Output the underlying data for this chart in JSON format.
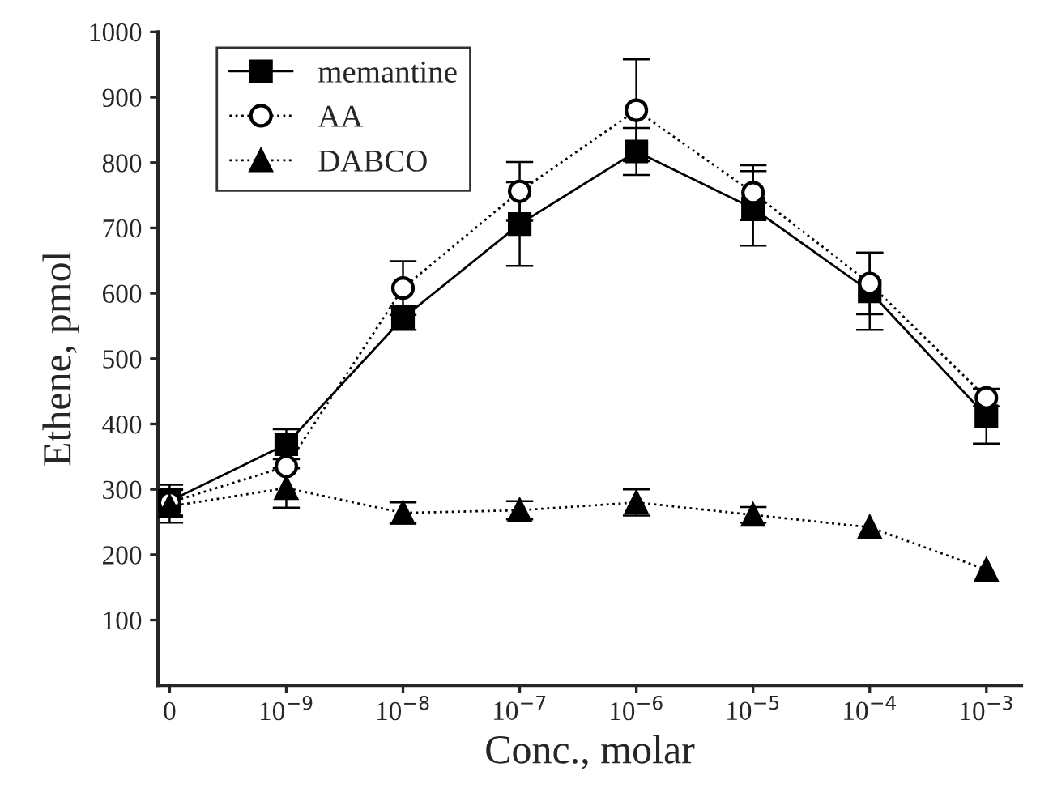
{
  "chart_data": {
    "type": "line",
    "xlabel": "Conc., molar",
    "ylabel": "Ethene, pmol",
    "categories": [
      "0",
      "10$^{−9}$",
      "10$^{−8}$",
      "10$^{−7}$",
      "10$^{−6}$",
      "10$^{−5}$",
      "10$^{−4}$",
      "10$^{−3}$"
    ],
    "series": [
      {
        "name": "memantine",
        "color": "#000000",
        "marker": "square",
        "line_style": "solid",
        "values": [
          282,
          369,
          562,
          706,
          817,
          730,
          603,
          412
        ],
        "errors": [
          25,
          23,
          18,
          64,
          36,
          57,
          59,
          42
        ]
      },
      {
        "name": "AA",
        "color": "#000000",
        "marker": "circle",
        "line_style": "dotted",
        "values": [
          280,
          335,
          608,
          756,
          880,
          754,
          615,
          440
        ],
        "errors": [
          20,
          null,
          41,
          45,
          78,
          42,
          47,
          13
        ]
      },
      {
        "name": "DABCO",
        "color": "#000000",
        "marker": "triangle",
        "line_style": "dotted",
        "values": [
          274,
          302,
          264,
          268,
          280,
          261,
          242,
          177
        ],
        "errors": [
          25,
          30,
          16,
          14,
          20,
          12,
          null,
          null
        ]
      }
    ],
    "ylim": [
      0,
      1000
    ],
    "yticks": [
      100,
      200,
      300,
      400,
      500,
      600,
      700,
      800,
      900,
      1000
    ],
    "grid": false,
    "legend": "top left"
  }
}
